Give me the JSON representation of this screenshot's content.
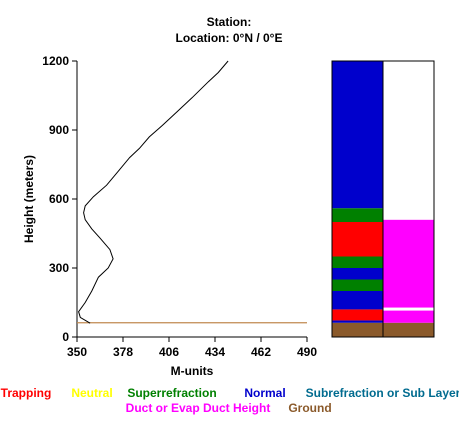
{
  "header": {
    "station_line": "Station:",
    "location_line": "Location:   0°N /   0°E"
  },
  "chart_data": {
    "type": "line",
    "xlabel": "M-units",
    "ylabel": "Height (meters)",
    "xlim": [
      350,
      490
    ],
    "ylim": [
      0,
      1200
    ],
    "x_ticks": [
      "350",
      "378",
      "406",
      "434",
      "462",
      "490"
    ],
    "y_ticks": [
      "0",
      "300",
      "600",
      "900",
      "1200"
    ],
    "grid": false,
    "profile": [
      {
        "m": 358,
        "h": 60
      },
      {
        "m": 352,
        "h": 85
      },
      {
        "m": 351,
        "h": 110
      },
      {
        "m": 355,
        "h": 150
      },
      {
        "m": 359,
        "h": 200
      },
      {
        "m": 363,
        "h": 260
      },
      {
        "m": 369,
        "h": 300
      },
      {
        "m": 372,
        "h": 340
      },
      {
        "m": 370,
        "h": 380
      },
      {
        "m": 364,
        "h": 430
      },
      {
        "m": 359,
        "h": 470
      },
      {
        "m": 355,
        "h": 510
      },
      {
        "m": 354,
        "h": 540
      },
      {
        "m": 355,
        "h": 570
      },
      {
        "m": 360,
        "h": 610
      },
      {
        "m": 368,
        "h": 660
      },
      {
        "m": 375,
        "h": 720
      },
      {
        "m": 382,
        "h": 780
      },
      {
        "m": 388,
        "h": 820
      },
      {
        "m": 394,
        "h": 870
      },
      {
        "m": 402,
        "h": 920
      },
      {
        "m": 411,
        "h": 980
      },
      {
        "m": 420,
        "h": 1040
      },
      {
        "m": 430,
        "h": 1110
      },
      {
        "m": 436,
        "h": 1150
      },
      {
        "m": 442,
        "h": 1200
      }
    ],
    "ground_line_height": 62,
    "ground_line_color": "#c08a50",
    "column_left": [
      {
        "from": 0,
        "to": 62,
        "category": "Ground"
      },
      {
        "from": 62,
        "to": 72,
        "category": "Normal"
      },
      {
        "from": 72,
        "to": 120,
        "category": "Trapping"
      },
      {
        "from": 120,
        "to": 200,
        "category": "Normal"
      },
      {
        "from": 200,
        "to": 250,
        "category": "Superrefraction"
      },
      {
        "from": 250,
        "to": 300,
        "category": "Normal"
      },
      {
        "from": 300,
        "to": 350,
        "category": "Superrefraction"
      },
      {
        "from": 350,
        "to": 500,
        "category": "Trapping"
      },
      {
        "from": 500,
        "to": 560,
        "category": "Superrefraction"
      },
      {
        "from": 560,
        "to": 1200,
        "category": "Normal"
      }
    ],
    "column_right": [
      {
        "from": 0,
        "to": 62,
        "category": "Ground"
      },
      {
        "from": 62,
        "to": 115,
        "category": "Duct or Evap Duct Height"
      },
      {
        "from": 115,
        "to": 128,
        "category": "None"
      },
      {
        "from": 128,
        "to": 510,
        "category": "Duct or Evap Duct Height"
      },
      {
        "from": 510,
        "to": 1200,
        "category": "None"
      }
    ]
  },
  "legend": {
    "row1": [
      {
        "label": "Trapping",
        "color": "#ff0000"
      },
      {
        "label": "Neutral",
        "color": "#ffff00"
      },
      {
        "label": "Superrefraction",
        "color": "#008000"
      },
      {
        "label": "Normal",
        "color": "#0000cc"
      },
      {
        "label": "Subrefraction or Sub Layer",
        "color": "#006b8f"
      }
    ],
    "row2": [
      {
        "label": "Duct or Evap Duct Height",
        "color": "#ff00ff"
      },
      {
        "label": "Ground",
        "color": "#8b5a2b"
      }
    ]
  },
  "category_colors": {
    "Trapping": "#ff0000",
    "Neutral": "#ffff00",
    "Superrefraction": "#008000",
    "Normal": "#0000cc",
    "Subrefraction or Sub Layer": "#006b8f",
    "Duct or Evap Duct Height": "#ff00ff",
    "Ground": "#8b5a2b",
    "None": "#ffffff"
  }
}
